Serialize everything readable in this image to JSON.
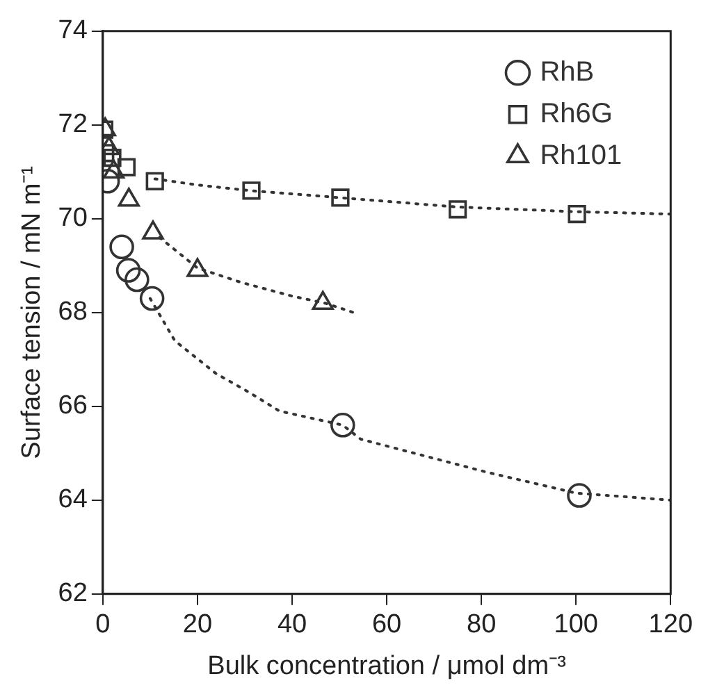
{
  "chart_data": {
    "type": "scatter",
    "xlabel": "Bulk concentration / μmol dm⁻³",
    "ylabel": "Surface tension / mN m⁻¹",
    "xlim": [
      0,
      120
    ],
    "xticks": [
      0,
      20,
      40,
      60,
      80,
      100,
      120
    ],
    "ylim": [
      62,
      74
    ],
    "yticks": [
      62,
      64,
      66,
      68,
      70,
      72,
      74
    ],
    "grid": false,
    "legend": "right",
    "series": [
      {
        "name": "RhB",
        "marker": "circle",
        "color": "#333333",
        "x": [
          1,
          4,
          5.4,
          7.2,
          10.4,
          50.7,
          100.7
        ],
        "values": [
          70.8,
          69.4,
          68.9,
          68.7,
          68.3,
          65.6,
          64.1
        ]
      },
      {
        "name": "Rh6G",
        "marker": "square",
        "color": "#333333",
        "x": [
          0.3,
          0.5,
          2,
          5,
          11,
          31.4,
          50.2,
          75,
          100.2
        ],
        "values": [
          71.9,
          71.4,
          71.3,
          71.1,
          70.8,
          70.6,
          70.45,
          70.2,
          70.1
        ]
      },
      {
        "name": "Rh101",
        "marker": "triangle",
        "color": "#333333",
        "x": [
          0.5,
          1.3,
          2.3,
          5.5,
          10.6,
          20,
          46.5
        ],
        "values": [
          71.9,
          71.5,
          71,
          70.4,
          69.7,
          68.9,
          68.2
        ]
      },
      {
        "type": "line",
        "marker": "none",
        "line_style": "dotted",
        "color": "#333333",
        "x": [
          10,
          15.2,
          23.9,
          30.9,
          37.3,
          50.7,
          54.5,
          81,
          100,
          120
        ],
        "values": [
          68.3,
          67.4,
          66.7,
          66.3,
          65.9,
          65.6,
          65.3,
          64.6,
          64.15,
          64.0
        ]
      },
      {
        "type": "line",
        "marker": "none",
        "line_style": "dotted",
        "color": "#333333",
        "x": [
          11,
          20,
          31,
          50,
          75,
          100,
          120
        ],
        "values": [
          70.85,
          70.72,
          70.6,
          70.45,
          70.25,
          70.15,
          70.1
        ]
      },
      {
        "type": "line",
        "marker": "none",
        "line_style": "dotted",
        "color": "#333333",
        "x": [
          12,
          20,
          29,
          40,
          47,
          53
        ],
        "values": [
          69.6,
          68.95,
          68.65,
          68.35,
          68.2,
          68.0
        ]
      }
    ]
  }
}
